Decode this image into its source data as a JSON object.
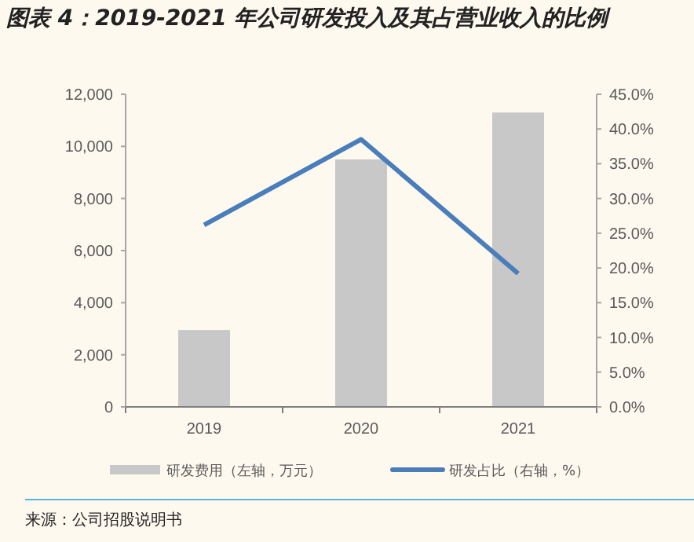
{
  "chart_data": {
    "type": "bar",
    "title": "图表 4：2019-2021 年公司研发投入及其占营业收入的比例",
    "categories": [
      "2019",
      "2020",
      "2021"
    ],
    "series": [
      {
        "name": "研发费用（左轴，万元）",
        "color": "#c8c8c8",
        "values": [
          2950,
          9500,
          11300
        ]
      },
      {
        "name": "研发占比（右轴，%）",
        "type": "line",
        "axis": "y2",
        "color": "#4a7ebb",
        "values": [
          26.2,
          38.5,
          19.2
        ]
      }
    ],
    "ylim": [
      0,
      12000
    ],
    "yticks": [
      0,
      {
        "value": 2000,
        "label": "2,000"
      },
      {
        "value": 4000,
        "label": "4,000"
      },
      {
        "value": 6000,
        "label": "6,000"
      },
      {
        "value": 8000,
        "label": "8,000"
      },
      {
        "value": 10000,
        "label": "10,000"
      },
      {
        "value": 12000,
        "label": "12,000"
      }
    ],
    "y2lim": [
      0,
      45
    ],
    "y2ticks": [
      {
        "value": 0,
        "label": "0.0%"
      },
      {
        "value": 5,
        "label": "5.0%"
      },
      {
        "value": 10,
        "label": "10.0%"
      },
      {
        "value": 15,
        "label": "15.0%"
      },
      {
        "value": 20,
        "label": "20.0%"
      },
      {
        "value": 25,
        "label": "25.0%"
      },
      {
        "value": 30,
        "label": "30.0%"
      },
      {
        "value": 35,
        "label": "35.0%"
      },
      {
        "value": 40,
        "label": "40.0%"
      },
      {
        "value": 45,
        "label": "45.0%"
      }
    ],
    "legend": "bottom",
    "grid": false,
    "annotations": [
      "来源：公司招股说明书"
    ]
  }
}
